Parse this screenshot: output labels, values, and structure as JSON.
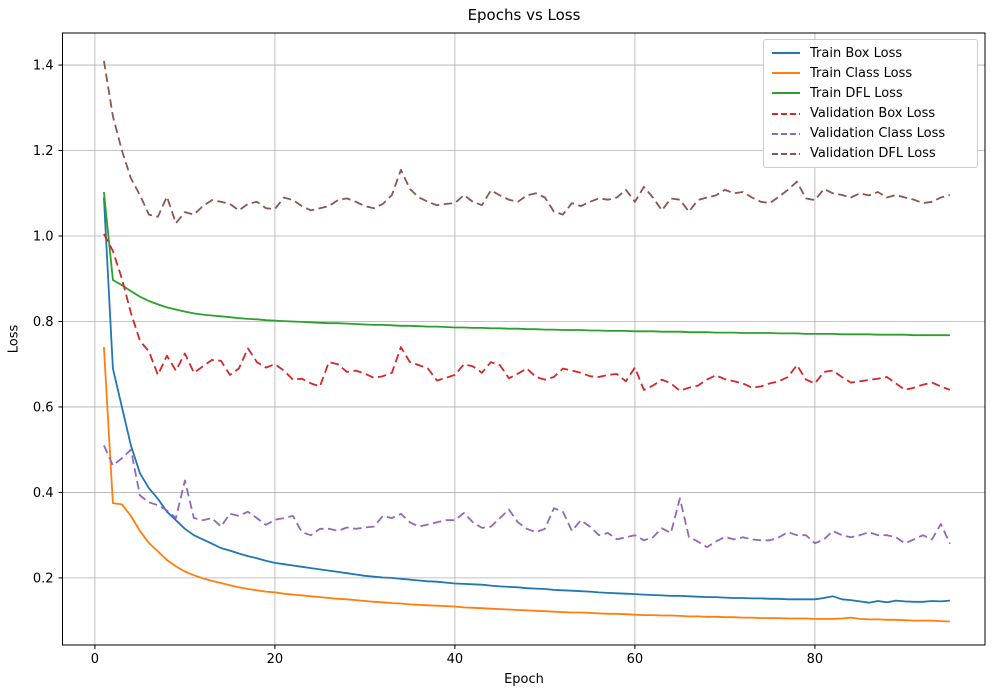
{
  "chart_data": {
    "type": "line",
    "title": "Epochs vs Loss",
    "xlabel": "Epoch",
    "ylabel": "Loss",
    "grid": true,
    "legend_position": "upper right",
    "xlim": [
      -3.6,
      98.9
    ],
    "ylim": [
      0.043,
      1.475
    ],
    "xticks": [
      0,
      20,
      40,
      60,
      80
    ],
    "yticks": [
      0.2,
      0.4,
      0.6,
      0.8,
      1.0,
      1.2,
      1.4
    ],
    "x_epoch_start": 1,
    "series": [
      {
        "name": "Train Box Loss",
        "color": "#1f77b4",
        "style": "solid",
        "values": [
          1.09,
          0.69,
          0.6,
          0.51,
          0.445,
          0.41,
          0.385,
          0.355,
          0.335,
          0.315,
          0.3,
          0.29,
          0.28,
          0.27,
          0.264,
          0.257,
          0.251,
          0.246,
          0.24,
          0.235,
          0.232,
          0.229,
          0.226,
          0.223,
          0.22,
          0.217,
          0.214,
          0.211,
          0.208,
          0.205,
          0.203,
          0.201,
          0.2,
          0.198,
          0.196,
          0.194,
          0.192,
          0.191,
          0.189,
          0.187,
          0.186,
          0.185,
          0.184,
          0.182,
          0.18,
          0.179,
          0.178,
          0.176,
          0.175,
          0.174,
          0.172,
          0.171,
          0.17,
          0.169,
          0.168,
          0.166,
          0.165,
          0.164,
          0.163,
          0.162,
          0.161,
          0.16,
          0.159,
          0.158,
          0.158,
          0.157,
          0.156,
          0.155,
          0.155,
          0.154,
          0.153,
          0.153,
          0.152,
          0.152,
          0.151,
          0.151,
          0.15,
          0.15,
          0.15,
          0.15,
          0.153,
          0.157,
          0.15,
          0.148,
          0.145,
          0.142,
          0.146,
          0.143,
          0.147,
          0.145,
          0.144,
          0.144,
          0.146,
          0.145,
          0.147
        ]
      },
      {
        "name": "Train Class Loss",
        "color": "#ff7f0e",
        "style": "solid",
        "values": [
          0.74,
          0.375,
          0.372,
          0.345,
          0.31,
          0.282,
          0.262,
          0.242,
          0.227,
          0.215,
          0.206,
          0.199,
          0.193,
          0.188,
          0.183,
          0.178,
          0.174,
          0.171,
          0.168,
          0.166,
          0.163,
          0.161,
          0.159,
          0.157,
          0.155,
          0.153,
          0.151,
          0.15,
          0.148,
          0.146,
          0.144,
          0.143,
          0.141,
          0.14,
          0.138,
          0.137,
          0.136,
          0.135,
          0.134,
          0.133,
          0.131,
          0.13,
          0.129,
          0.128,
          0.127,
          0.126,
          0.125,
          0.124,
          0.123,
          0.122,
          0.121,
          0.12,
          0.119,
          0.119,
          0.118,
          0.117,
          0.116,
          0.116,
          0.115,
          0.114,
          0.113,
          0.113,
          0.112,
          0.112,
          0.111,
          0.11,
          0.11,
          0.109,
          0.109,
          0.108,
          0.108,
          0.107,
          0.107,
          0.106,
          0.106,
          0.106,
          0.105,
          0.105,
          0.105,
          0.104,
          0.104,
          0.104,
          0.105,
          0.107,
          0.104,
          0.103,
          0.103,
          0.102,
          0.102,
          0.101,
          0.1,
          0.1,
          0.1,
          0.099,
          0.098
        ]
      },
      {
        "name": "Train DFL Loss",
        "color": "#2ca02c",
        "style": "solid",
        "values": [
          1.103,
          0.897,
          0.885,
          0.871,
          0.858,
          0.848,
          0.84,
          0.833,
          0.828,
          0.823,
          0.819,
          0.816,
          0.814,
          0.812,
          0.81,
          0.808,
          0.806,
          0.805,
          0.803,
          0.802,
          0.801,
          0.8,
          0.799,
          0.798,
          0.797,
          0.796,
          0.796,
          0.795,
          0.794,
          0.793,
          0.792,
          0.792,
          0.791,
          0.79,
          0.79,
          0.789,
          0.788,
          0.788,
          0.787,
          0.786,
          0.786,
          0.785,
          0.785,
          0.784,
          0.784,
          0.783,
          0.783,
          0.782,
          0.782,
          0.781,
          0.781,
          0.78,
          0.78,
          0.78,
          0.779,
          0.779,
          0.778,
          0.778,
          0.778,
          0.777,
          0.777,
          0.777,
          0.776,
          0.776,
          0.776,
          0.775,
          0.775,
          0.775,
          0.774,
          0.774,
          0.774,
          0.773,
          0.773,
          0.773,
          0.773,
          0.772,
          0.772,
          0.772,
          0.771,
          0.771,
          0.771,
          0.771,
          0.77,
          0.77,
          0.77,
          0.77,
          0.769,
          0.769,
          0.769,
          0.769,
          0.768,
          0.768,
          0.768,
          0.768,
          0.768
        ]
      },
      {
        "name": "Validation Box Loss",
        "color": "#d62728",
        "style": "dashed",
        "values": [
          1.005,
          0.965,
          0.9,
          0.82,
          0.755,
          0.73,
          0.675,
          0.72,
          0.685,
          0.725,
          0.68,
          0.695,
          0.71,
          0.708,
          0.675,
          0.69,
          0.737,
          0.705,
          0.692,
          0.7,
          0.685,
          0.664,
          0.666,
          0.655,
          0.648,
          0.705,
          0.7,
          0.682,
          0.685,
          0.678,
          0.668,
          0.672,
          0.68,
          0.74,
          0.705,
          0.698,
          0.69,
          0.662,
          0.668,
          0.675,
          0.7,
          0.695,
          0.68,
          0.705,
          0.698,
          0.667,
          0.678,
          0.69,
          0.67,
          0.664,
          0.67,
          0.69,
          0.685,
          0.68,
          0.672,
          0.67,
          0.675,
          0.677,
          0.66,
          0.692,
          0.64,
          0.65,
          0.664,
          0.655,
          0.638,
          0.645,
          0.65,
          0.664,
          0.674,
          0.665,
          0.66,
          0.655,
          0.645,
          0.648,
          0.655,
          0.66,
          0.67,
          0.698,
          0.664,
          0.655,
          0.682,
          0.685,
          0.67,
          0.657,
          0.66,
          0.663,
          0.666,
          0.67,
          0.655,
          0.64,
          0.645,
          0.652,
          0.657,
          0.648,
          0.64
        ]
      },
      {
        "name": "Validation Class Loss",
        "color": "#9467bd",
        "style": "dashed",
        "values": [
          0.51,
          0.463,
          0.48,
          0.5,
          0.393,
          0.377,
          0.37,
          0.358,
          0.34,
          0.428,
          0.34,
          0.335,
          0.34,
          0.32,
          0.35,
          0.345,
          0.355,
          0.34,
          0.324,
          0.336,
          0.34,
          0.345,
          0.307,
          0.3,
          0.315,
          0.315,
          0.31,
          0.318,
          0.315,
          0.318,
          0.32,
          0.345,
          0.34,
          0.35,
          0.33,
          0.32,
          0.325,
          0.33,
          0.335,
          0.335,
          0.352,
          0.33,
          0.317,
          0.32,
          0.34,
          0.36,
          0.33,
          0.315,
          0.307,
          0.315,
          0.363,
          0.355,
          0.31,
          0.335,
          0.32,
          0.3,
          0.305,
          0.29,
          0.295,
          0.3,
          0.288,
          0.295,
          0.316,
          0.305,
          0.386,
          0.296,
          0.285,
          0.272,
          0.285,
          0.296,
          0.29,
          0.295,
          0.29,
          0.288,
          0.288,
          0.295,
          0.307,
          0.3,
          0.3,
          0.281,
          0.29,
          0.31,
          0.3,
          0.295,
          0.3,
          0.307,
          0.3,
          0.3,
          0.295,
          0.281,
          0.29,
          0.3,
          0.29,
          0.326,
          0.28
        ]
      },
      {
        "name": "Validation DFL Loss",
        "color": "#8c564b",
        "style": "dashed",
        "values": [
          1.41,
          1.28,
          1.2,
          1.135,
          1.096,
          1.05,
          1.045,
          1.092,
          1.03,
          1.056,
          1.05,
          1.07,
          1.084,
          1.08,
          1.075,
          1.06,
          1.075,
          1.08,
          1.065,
          1.063,
          1.09,
          1.084,
          1.07,
          1.06,
          1.065,
          1.07,
          1.084,
          1.088,
          1.08,
          1.07,
          1.065,
          1.075,
          1.096,
          1.155,
          1.11,
          1.09,
          1.08,
          1.072,
          1.075,
          1.077,
          1.096,
          1.08,
          1.072,
          1.107,
          1.095,
          1.085,
          1.08,
          1.095,
          1.1,
          1.09,
          1.057,
          1.05,
          1.077,
          1.07,
          1.08,
          1.088,
          1.085,
          1.09,
          1.108,
          1.08,
          1.115,
          1.09,
          1.06,
          1.088,
          1.085,
          1.057,
          1.084,
          1.09,
          1.095,
          1.108,
          1.1,
          1.103,
          1.09,
          1.08,
          1.077,
          1.092,
          1.108,
          1.127,
          1.088,
          1.084,
          1.11,
          1.1,
          1.096,
          1.09,
          1.1,
          1.095,
          1.103,
          1.09,
          1.096,
          1.09,
          1.085,
          1.077,
          1.08,
          1.09,
          1.096
        ]
      }
    ]
  }
}
